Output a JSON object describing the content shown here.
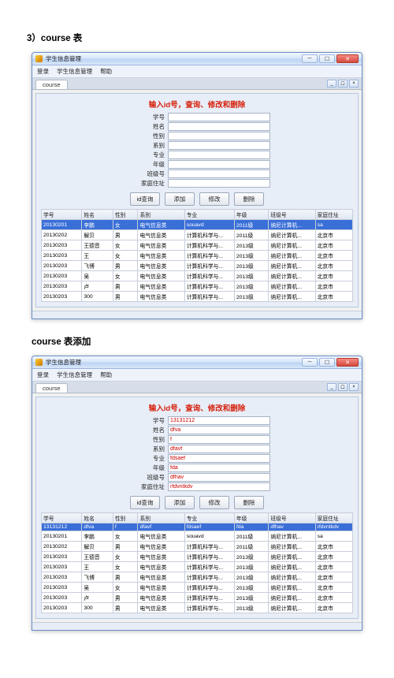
{
  "doc": {
    "heading1": "3）course 表",
    "heading2": "course 表添加"
  },
  "win": {
    "title": "学生信息管理",
    "menus": [
      "登录",
      "学生信息管理",
      "帮助"
    ],
    "tab": "course"
  },
  "form": {
    "panel_title": "输入id号，查询、修改和删除",
    "labels": [
      "学号",
      "姓名",
      "性别",
      "系别",
      "专业",
      "年级",
      "班级号",
      "家庭住址"
    ],
    "values1": [
      "",
      "",
      "",
      "",
      "",
      "",
      "",
      ""
    ],
    "values2": [
      "13131212",
      "dfva",
      "f",
      "dfavf",
      "fdsaef",
      "fda",
      "dfhav",
      "rfdvntkdv"
    ],
    "buttons": [
      "id查询",
      "添加",
      "修改",
      "删除"
    ]
  },
  "table": {
    "columns": [
      "学号",
      "姓名",
      "性别",
      "系别",
      "专业",
      "年级",
      "班级号",
      "家庭住址"
    ],
    "rows1": [
      [
        "20130201",
        "李鹏",
        "女",
        "电气信息类",
        "souavd",
        "2011级",
        "纳尼计算机...",
        "sa"
      ],
      [
        "20130202",
        "解贝",
        "男",
        "电气信息类",
        "计算机科学与...",
        "2011级",
        "纳尼计算机...",
        "北京市"
      ],
      [
        "20130203",
        "王德音",
        "女",
        "电气信息类",
        "计算机科学与...",
        "2013级",
        "纳尼计算机...",
        "北京市"
      ],
      [
        "20130203",
        "王",
        "女",
        "电气信息类",
        "计算机科学与...",
        "2013级",
        "纳尼计算机...",
        "北京市"
      ],
      [
        "20130203",
        "飞博",
        "男",
        "电气信息类",
        "计算机科学与...",
        "2013级",
        "纳尼计算机...",
        "北京市"
      ],
      [
        "20130203",
        "吴",
        "女",
        "电气信息类",
        "计算机科学与...",
        "2013级",
        "纳尼计算机...",
        "北京市"
      ],
      [
        "20130203",
        "卢",
        "男",
        "电气信息类",
        "计算机科学与...",
        "2013级",
        "纳尼计算机...",
        "北京市"
      ],
      [
        "20130203",
        "300",
        "男",
        "电气信息类",
        "计算机科学与...",
        "2013级",
        "纳尼计算机...",
        "北京市"
      ]
    ],
    "rows2": [
      [
        "13131212",
        "dfva",
        "f",
        "dfavf",
        "fdsaef",
        "fda",
        "dfhav",
        "rfdvntkdv"
      ],
      [
        "20130201",
        "李鹏",
        "女",
        "电气信息类",
        "souavd",
        "2011级",
        "纳尼计算机...",
        "sa"
      ],
      [
        "20130202",
        "解贝",
        "男",
        "电气信息类",
        "计算机科学与...",
        "2011级",
        "纳尼计算机...",
        "北京市"
      ],
      [
        "20130203",
        "王德音",
        "女",
        "电气信息类",
        "计算机科学与...",
        "2013级",
        "纳尼计算机...",
        "北京市"
      ],
      [
        "20130203",
        "王",
        "女",
        "电气信息类",
        "计算机科学与...",
        "2013级",
        "纳尼计算机...",
        "北京市"
      ],
      [
        "20130203",
        "飞博",
        "男",
        "电气信息类",
        "计算机科学与...",
        "2013级",
        "纳尼计算机...",
        "北京市"
      ],
      [
        "20130203",
        "吴",
        "女",
        "电气信息类",
        "计算机科学与...",
        "2013级",
        "纳尼计算机...",
        "北京市"
      ],
      [
        "20130203",
        "卢",
        "男",
        "电气信息类",
        "计算机科学与...",
        "2013级",
        "纳尼计算机...",
        "北京市"
      ],
      [
        "20130203",
        "300",
        "男",
        "电气信息类",
        "计算机科学与...",
        "2013级",
        "纳尼计算机...",
        "北京市"
      ]
    ],
    "col_widths": [
      "13%",
      "10%",
      "8%",
      "15%",
      "16%",
      "11%",
      "15%",
      "12%"
    ]
  },
  "style": {
    "accent_red": "#d61f0b",
    "selection_bg": "#3a6fd8",
    "selection_fg": "#ffffff"
  }
}
